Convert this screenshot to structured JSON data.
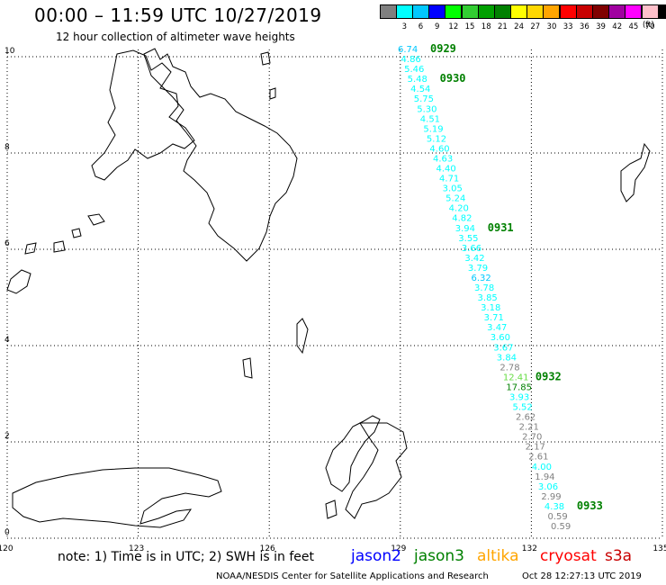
{
  "header": {
    "title": "00:00 – 11:59 UTC 10/27/2019",
    "subtitle": "12 hour collection of altimeter wave heights"
  },
  "legend": {
    "unit": "(ft)",
    "bins": [
      {
        "label": "",
        "color": "#808080"
      },
      {
        "label": "3",
        "color": "#00ffff"
      },
      {
        "label": "6",
        "color": "#00c8ff"
      },
      {
        "label": "9",
        "color": "#0000ff"
      },
      {
        "label": "12",
        "color": "#00ff00"
      },
      {
        "label": "15",
        "color": "#32cd32"
      },
      {
        "label": "18",
        "color": "#00a000"
      },
      {
        "label": "21",
        "color": "#008000"
      },
      {
        "label": "24",
        "color": "#ffff00"
      },
      {
        "label": "27",
        "color": "#ffd700"
      },
      {
        "label": "30",
        "color": "#ffa500"
      },
      {
        "label": "33",
        "color": "#ff0000"
      },
      {
        "label": "36",
        "color": "#c80000"
      },
      {
        "label": "39",
        "color": "#800000"
      },
      {
        "label": "42",
        "color": "#a000a0"
      },
      {
        "label": "45",
        "color": "#ff00ff"
      },
      {
        "label": "70",
        "color": "#ffc0cb"
      },
      {
        "label": "",
        "color": "#000000"
      }
    ]
  },
  "axes": {
    "lon_ticks": [
      "120",
      "123",
      "126",
      "129",
      "132",
      "135"
    ],
    "lat_ticks": [
      "0",
      "2",
      "4",
      "6",
      "8",
      "10"
    ]
  },
  "track": {
    "observations": [
      {
        "v": "6.74",
        "c": "#00c8ff"
      },
      {
        "v": "4.86",
        "c": "#00ffff"
      },
      {
        "v": "5.46",
        "c": "#00ffff"
      },
      {
        "v": "5.48",
        "c": "#00ffff"
      },
      {
        "v": "4.54",
        "c": "#00ffff"
      },
      {
        "v": "5.75",
        "c": "#00ffff"
      },
      {
        "v": "5.30",
        "c": "#00ffff"
      },
      {
        "v": "4.51",
        "c": "#00ffff"
      },
      {
        "v": "5.19",
        "c": "#00ffff"
      },
      {
        "v": "5.12",
        "c": "#00ffff"
      },
      {
        "v": "4.60",
        "c": "#00ffff"
      },
      {
        "v": "4.63",
        "c": "#00ffff"
      },
      {
        "v": "4.40",
        "c": "#00ffff"
      },
      {
        "v": "4.71",
        "c": "#00ffff"
      },
      {
        "v": "3.05",
        "c": "#00ffff"
      },
      {
        "v": "5.24",
        "c": "#00ffff"
      },
      {
        "v": "4.20",
        "c": "#00ffff"
      },
      {
        "v": "4.82",
        "c": "#00ffff"
      },
      {
        "v": "3.94",
        "c": "#00ffff"
      },
      {
        "v": "3.55",
        "c": "#00ffff"
      },
      {
        "v": "3.66",
        "c": "#00ffff"
      },
      {
        "v": "3.42",
        "c": "#00ffff"
      },
      {
        "v": "3.79",
        "c": "#00ffff"
      },
      {
        "v": "6.32",
        "c": "#00c8ff"
      },
      {
        "v": "3.78",
        "c": "#00ffff"
      },
      {
        "v": "3.85",
        "c": "#00ffff"
      },
      {
        "v": "3.18",
        "c": "#00ffff"
      },
      {
        "v": "3.71",
        "c": "#00ffff"
      },
      {
        "v": "3.47",
        "c": "#00ffff"
      },
      {
        "v": "3.60",
        "c": "#00ffff"
      },
      {
        "v": "3.67",
        "c": "#00ffff"
      },
      {
        "v": "3.84",
        "c": "#00ffff"
      },
      {
        "v": "2.78",
        "c": "#808080"
      },
      {
        "v": "12.41",
        "c": "#66dd44"
      },
      {
        "v": "17.85",
        "c": "#008000"
      },
      {
        "v": "3.93",
        "c": "#00ffff"
      },
      {
        "v": "5.52",
        "c": "#00ffff"
      },
      {
        "v": "2.62",
        "c": "#808080"
      },
      {
        "v": "2.21",
        "c": "#808080"
      },
      {
        "v": "2.70",
        "c": "#808080"
      },
      {
        "v": "2.17",
        "c": "#808080"
      },
      {
        "v": "2.61",
        "c": "#808080"
      },
      {
        "v": "4.00",
        "c": "#00ffff"
      },
      {
        "v": "1.94",
        "c": "#808080"
      },
      {
        "v": "3.06",
        "c": "#00ffff"
      },
      {
        "v": "2.99",
        "c": "#808080"
      },
      {
        "v": "4.38",
        "c": "#00ffff"
      },
      {
        "v": "0.59",
        "c": "#808080"
      },
      {
        "v": "0.59",
        "c": "#808080"
      }
    ],
    "time_labels": [
      "0929",
      "0930",
      "0931",
      "0932",
      "0933"
    ]
  },
  "note": "note:  1) Time is in UTC;  2) SWH is in feet",
  "satellites": [
    {
      "name": "jason2",
      "color": "#0000ff"
    },
    {
      "name": "jason3",
      "color": "#008000"
    },
    {
      "name": "altika",
      "color": "#ffa500"
    },
    {
      "name": "cryosat",
      "color": "#ff0000"
    },
    {
      "name": "s3a",
      "color": "#c80000"
    }
  ],
  "footer": {
    "credit": "NOAA/NESDIS Center for Satellite Applications and Research",
    "timestamp": "Oct 28 12:27:13 UTC 2019"
  }
}
